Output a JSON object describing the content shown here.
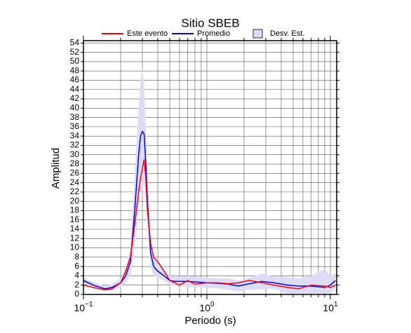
{
  "chart_data": {
    "type": "line",
    "title": "Sitio SBEB",
    "xlabel": "Periodo (s)",
    "ylabel": "Amplitud",
    "xlog": true,
    "grid": true,
    "legend": "top",
    "xlim": [
      0.1,
      11.25
    ],
    "ylim": [
      0,
      54.5
    ],
    "xticks": [
      {
        "value": 0.1,
        "label": "10",
        "exponent": "−1"
      },
      {
        "value": 1,
        "label": "10",
        "exponent": "0"
      },
      {
        "value": 10,
        "label": "10",
        "exponent": "1"
      }
    ],
    "xminorticks": [
      0.2,
      0.3,
      0.4,
      0.5,
      0.6,
      0.7,
      0.8,
      0.9,
      2,
      3,
      4,
      5,
      6,
      7,
      8,
      9
    ],
    "yticks": [
      0,
      2,
      4,
      6,
      8,
      10,
      12,
      14,
      16,
      18,
      20,
      22,
      24,
      26,
      28,
      30,
      32,
      34,
      36,
      38,
      40,
      42,
      44,
      46,
      48,
      50,
      52,
      54
    ],
    "x": [
      0.1,
      0.12,
      0.15,
      0.17,
      0.2,
      0.22,
      0.24,
      0.26,
      0.28,
      0.29,
      0.3,
      0.31,
      0.32,
      0.33,
      0.35,
      0.37,
      0.4,
      0.45,
      0.5,
      0.55,
      0.6,
      0.7,
      0.8,
      1.0,
      1.2,
      1.5,
      1.8,
      2.2,
      2.8,
      3.5,
      4.5,
      5.5,
      7,
      9,
      10,
      11
    ],
    "series": [
      {
        "name": "Este evento",
        "color": "#ff0000",
        "values": [
          2,
          1.5,
          1,
          1.2,
          2.5,
          5,
          8,
          15,
          22,
          25,
          27,
          29,
          25,
          18,
          11,
          8,
          7,
          5,
          3,
          2.5,
          2,
          3,
          2.2,
          2.5,
          2.5,
          2.3,
          2.5,
          3,
          2.5,
          2,
          1.5,
          1.2,
          2,
          1.8,
          1.5,
          2
        ]
      },
      {
        "name": "Promedio",
        "color": "#0000ff",
        "values": [
          3,
          2,
          1.2,
          1.5,
          2.5,
          4,
          7,
          18,
          30,
          34,
          35,
          34.5,
          28,
          20,
          9,
          6,
          5,
          4,
          3,
          2.8,
          2.8,
          2.8,
          2.7,
          2.5,
          2.4,
          2.2,
          1.8,
          2.3,
          2.8,
          2.5,
          2,
          1.8,
          1.8,
          1.5,
          2,
          3
        ]
      },
      {
        "name": "Desv. Est.",
        "color": "#dcdcf6",
        "upper": [
          3.5,
          2.6,
          1.8,
          2.2,
          3.5,
          5.5,
          10,
          26,
          40,
          46,
          48.5,
          45,
          36,
          26,
          12,
          8,
          6.5,
          5,
          4,
          3.8,
          3.8,
          4,
          3.8,
          3.6,
          3.5,
          3.4,
          3,
          3.6,
          4.5,
          3.8,
          3.8,
          3.4,
          4,
          5.5,
          4,
          4.5
        ],
        "lower": [
          2.5,
          1.4,
          0.6,
          0.8,
          1.5,
          2.5,
          4,
          10,
          20,
          22,
          22,
          24,
          20,
          14,
          6,
          4,
          3.5,
          3,
          2,
          1.8,
          1.8,
          1.6,
          1.6,
          1.4,
          1.3,
          1.0,
          0.6,
          1.0,
          1.1,
          1.2,
          0.2,
          0.2,
          0.2,
          0.2,
          0.2,
          1.5
        ]
      }
    ]
  }
}
